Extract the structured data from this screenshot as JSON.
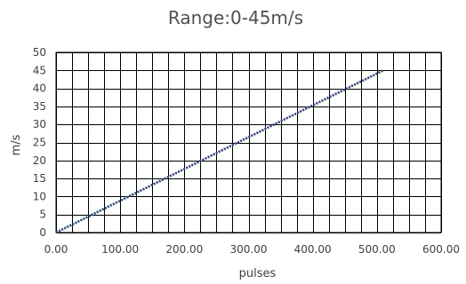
{
  "chart_data": {
    "type": "line",
    "title": "Range:0-45m/s",
    "xlabel": "pulses",
    "ylabel": "m/s",
    "xlim": [
      0,
      600
    ],
    "ylim": [
      0,
      50
    ],
    "x_ticks": [
      "0.00",
      "100.00",
      "200.00",
      "300.00",
      "400.00",
      "500.00",
      "600.00"
    ],
    "y_ticks": [
      "0",
      "5",
      "10",
      "15",
      "20",
      "25",
      "30",
      "35",
      "40",
      "45",
      "50"
    ],
    "grid": true,
    "series": [
      {
        "x": [
          0,
          510
        ],
        "y": [
          0,
          45
        ],
        "color": "#2f4a6e"
      }
    ]
  }
}
